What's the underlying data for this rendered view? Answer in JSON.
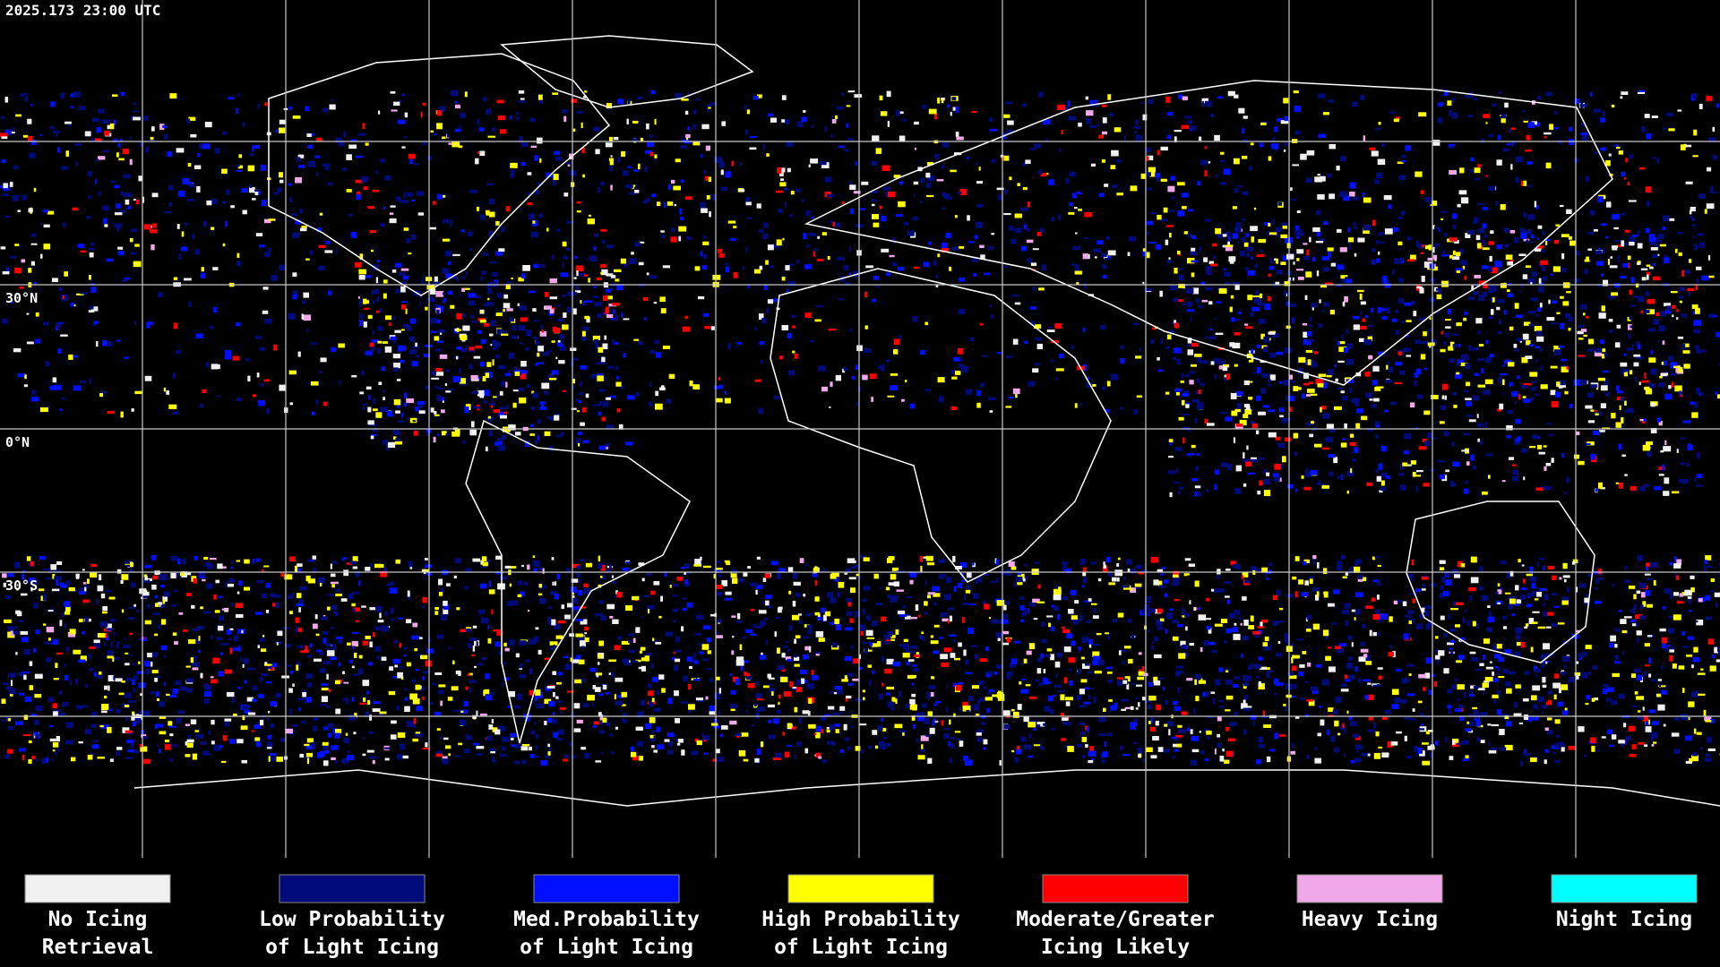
{
  "header": {
    "timestamp": "2025.173 23:00 UTC"
  },
  "map": {
    "latitude_labels": [
      "30°N",
      "0°N",
      "30°S"
    ]
  },
  "legend": [
    {
      "lines": [
        "No Icing",
        "Retrieval"
      ],
      "color": "#f0f0f0"
    },
    {
      "lines": [
        "Low Probability",
        "of Light Icing"
      ],
      "color": "#000a78"
    },
    {
      "lines": [
        "Med.Probability",
        "of Light Icing"
      ],
      "color": "#0010ff"
    },
    {
      "lines": [
        "High Probability",
        "of Light Icing"
      ],
      "color": "#ffff00"
    },
    {
      "lines": [
        "Moderate/Greater",
        "Icing Likely"
      ],
      "color": "#ff0000"
    },
    {
      "lines": [
        "Heavy Icing"
      ],
      "color": "#f0a8e8"
    },
    {
      "lines": [
        "Night Icing"
      ],
      "color": "#00ffff"
    }
  ]
}
